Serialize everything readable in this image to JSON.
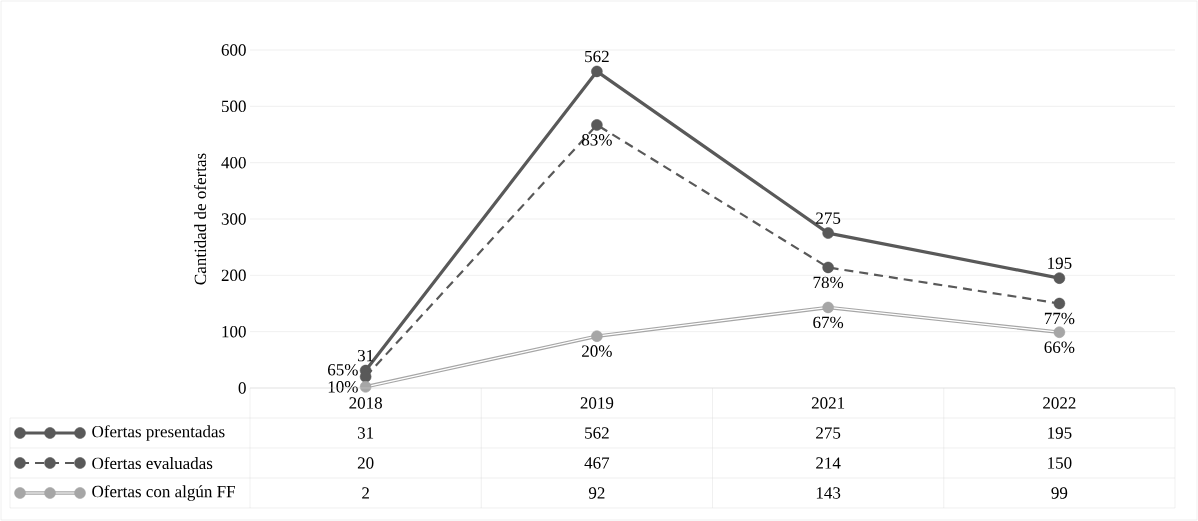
{
  "chart_data": {
    "type": "line",
    "ylabel": "Cantidad de ofertas",
    "categories": [
      "2018",
      "2019",
      "2021",
      "2022"
    ],
    "series": [
      {
        "name": "Ofertas presentadas",
        "color": "#595959",
        "line_style": "solid",
        "values": [
          31,
          562,
          275,
          195
        ]
      },
      {
        "name": "Ofertas evaluadas",
        "color": "#595959",
        "line_style": "dashed",
        "values": [
          20,
          467,
          214,
          150
        ]
      },
      {
        "name": "Ofertas con algún FF",
        "color": "#a6a6a6",
        "line_style": "solid",
        "values": [
          2,
          92,
          143,
          99
        ]
      }
    ],
    "annotations": [
      {
        "text": "31",
        "x": "2018",
        "y": 31
      },
      {
        "text": "562",
        "x": "2019",
        "y": 562
      },
      {
        "text": "275",
        "x": "2021",
        "y": 275
      },
      {
        "text": "195",
        "x": "2022",
        "y": 195
      },
      {
        "text": "65%",
        "x": "2018",
        "y": 20
      },
      {
        "text": "83%",
        "x": "2019",
        "y": 467
      },
      {
        "text": "78%",
        "x": "2021",
        "y": 214
      },
      {
        "text": "77%",
        "x": "2022",
        "y": 150
      },
      {
        "text": "10%",
        "x": "2018",
        "y": 2
      },
      {
        "text": "20%",
        "x": "2019",
        "y": 92
      },
      {
        "text": "67%",
        "x": "2021",
        "y": 143
      },
      {
        "text": "66%",
        "x": "2022",
        "y": 99
      }
    ],
    "ylim": [
      0,
      600
    ],
    "yticks": [
      0,
      100,
      200,
      300,
      400,
      500,
      600
    ],
    "grid": "y",
    "legend": "bottom",
    "marker": "circle",
    "data_labels": true
  }
}
